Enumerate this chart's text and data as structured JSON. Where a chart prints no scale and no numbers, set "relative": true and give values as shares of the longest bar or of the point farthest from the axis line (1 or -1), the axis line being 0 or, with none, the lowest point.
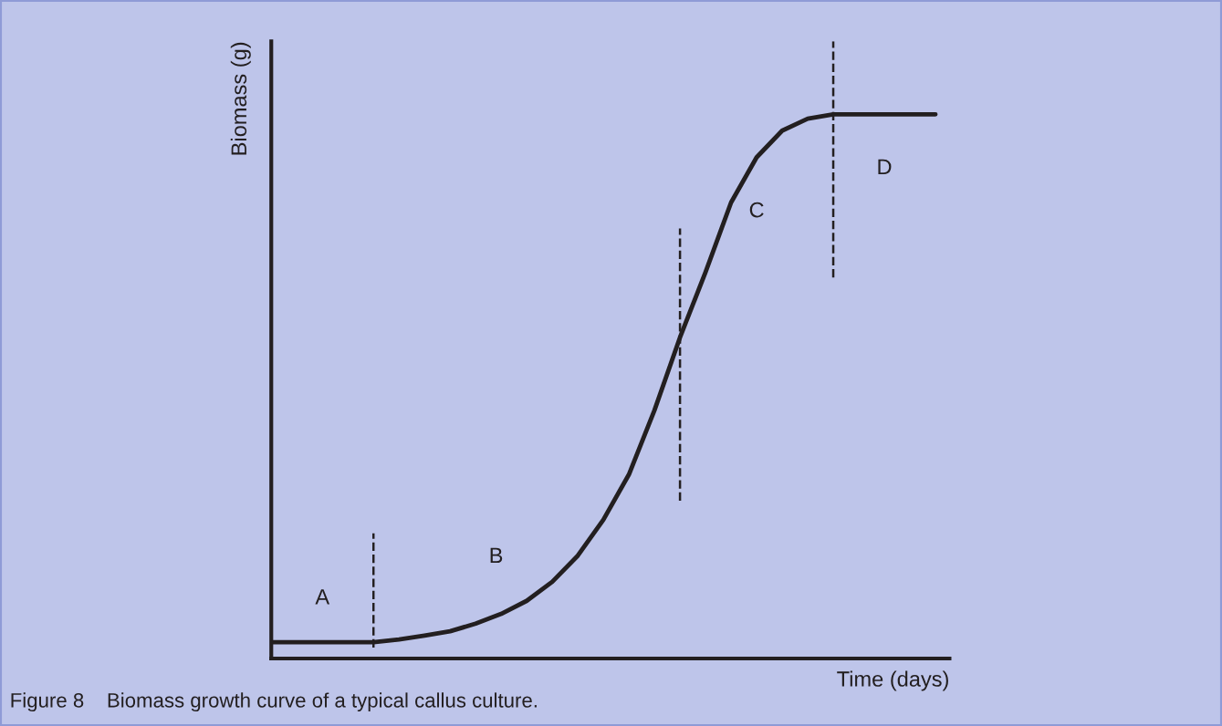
{
  "chart_data": {
    "type": "line",
    "relative": true,
    "xlabel": "Time (days)",
    "ylabel": "Biomass (g)",
    "categories": [
      null,
      null,
      null,
      null,
      null,
      null,
      null,
      null,
      null,
      null,
      null,
      null,
      null,
      null,
      null,
      null,
      null,
      null,
      null,
      null,
      null,
      null,
      null,
      null,
      null,
      null,
      null
    ],
    "series": [
      {
        "color": "#231f20",
        "values": [
          0.03,
          0.03,
          0.03,
          0.03,
          0.03,
          0.035,
          0.042,
          0.05,
          0.064,
          0.082,
          0.106,
          0.141,
          0.189,
          0.255,
          0.338,
          0.456,
          0.59,
          0.71,
          0.838,
          0.921,
          0.97,
          0.992,
          1.0,
          1.0,
          1.0,
          1.0,
          1.0
        ]
      }
    ],
    "annotations": [
      "A",
      "B",
      "C",
      "D",
      "Figure 8    Biomass growth curve of a typical callus culture."
    ],
    "marker": "none",
    "line_style": "solid"
  }
}
